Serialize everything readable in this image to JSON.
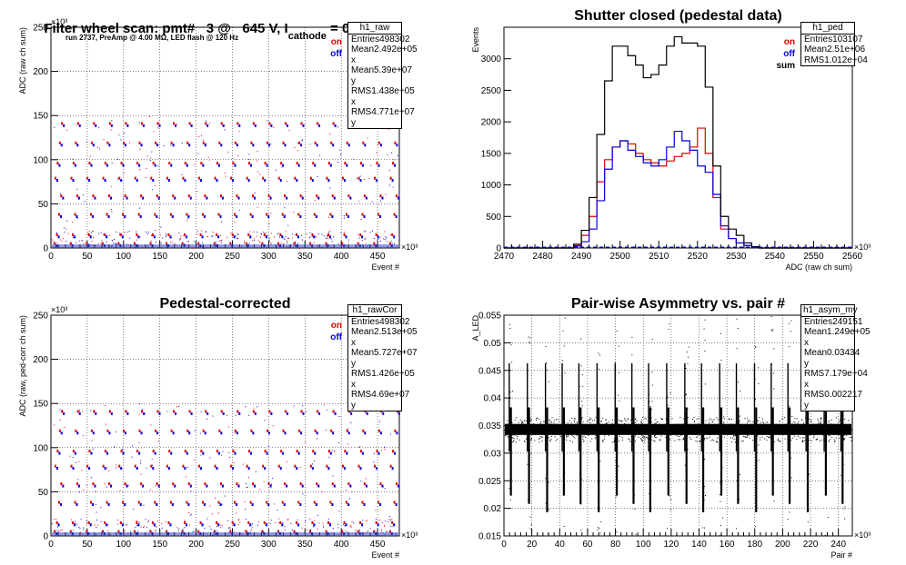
{
  "page": {
    "main_title": "Filter wheel scan: pmt#   3 @   645 V, I",
    "main_title_sub": "cathode",
    "main_title_tail": " = 0.30 nA"
  },
  "chart_data": [
    {
      "id": "raw",
      "type": "scatter",
      "title": "",
      "annotation": "run 2737, PreAmp @ 4.00 MΩ, LED flash @  120 Hz",
      "xlabel": "Event #",
      "ylabel": "ADC (raw ch sum)",
      "x_exponent": "×10³",
      "y_exponent": "×10³",
      "xlim": [
        0,
        480
      ],
      "ylim": [
        0,
        250
      ],
      "xticks": [
        0,
        50,
        100,
        150,
        200,
        250,
        300,
        350,
        400,
        450
      ],
      "yticks": [
        0,
        50,
        100,
        150,
        200,
        250
      ],
      "levels": [
        4,
        14,
        37,
        58,
        78,
        95,
        118,
        140
      ],
      "legend": [
        "on",
        "off"
      ],
      "legend_colors": [
        "#e00000",
        "#0000e0"
      ],
      "stats": {
        "name": "h1_raw",
        "rows": [
          [
            "Entries",
            "498302"
          ],
          [
            "Mean x",
            "2.492e+05"
          ],
          [
            "Mean y",
            "5.39e+07"
          ],
          [
            "RMS x",
            "1.438e+05"
          ],
          [
            "RMS y",
            "4.771e+07"
          ]
        ]
      }
    },
    {
      "id": "ped",
      "type": "line",
      "title": "Shutter closed (pedestal data)",
      "xlabel": "ADC (raw ch sum)",
      "ylabel": "Events",
      "x_exponent": "×10³",
      "xlim": [
        2470,
        2560
      ],
      "ylim": [
        0,
        3500
      ],
      "xticks": [
        2470,
        2480,
        2490,
        2500,
        2510,
        2520,
        2530,
        2540,
        2550,
        2560
      ],
      "yticks": [
        0,
        500,
        1000,
        1500,
        2000,
        2500,
        3000
      ],
      "x": [
        2486,
        2488,
        2490,
        2492,
        2494,
        2496,
        2498,
        2500,
        2502,
        2504,
        2506,
        2508,
        2510,
        2512,
        2514,
        2516,
        2518,
        2520,
        2522,
        2524,
        2526,
        2528,
        2530,
        2532,
        2534,
        2536
      ],
      "series": [
        {
          "name": "on",
          "color": "#e00000",
          "values": [
            0,
            40,
            200,
            500,
            1050,
            1400,
            1600,
            1700,
            1650,
            1500,
            1400,
            1350,
            1300,
            1380,
            1450,
            1500,
            1600,
            1900,
            1500,
            800,
            300,
            150,
            80,
            40,
            10,
            0
          ]
        },
        {
          "name": "off",
          "color": "#0000e0",
          "values": [
            0,
            30,
            100,
            300,
            750,
            1250,
            1600,
            1700,
            1550,
            1450,
            1350,
            1300,
            1400,
            1600,
            1850,
            1700,
            1550,
            1300,
            1200,
            850,
            350,
            150,
            80,
            40,
            10,
            0
          ]
        },
        {
          "name": "sum",
          "color": "#000000",
          "values": [
            0,
            60,
            280,
            800,
            1800,
            2650,
            3200,
            3200,
            3050,
            2900,
            2700,
            2750,
            2900,
            3200,
            3350,
            3250,
            3250,
            3200,
            2550,
            1300,
            500,
            300,
            200,
            80,
            20,
            0
          ]
        }
      ],
      "stats": {
        "name": "h1_ped",
        "rows": [
          [
            "Entries",
            "103107"
          ],
          [
            "Mean",
            "2.51e+06"
          ],
          [
            "RMS",
            "1.012e+04"
          ]
        ]
      }
    },
    {
      "id": "rawCor",
      "type": "scatter",
      "title": "Pedestal-corrected",
      "xlabel": "Event #",
      "ylabel": "ADC (raw, ped-corr ch sum)",
      "x_exponent": "×10³",
      "y_exponent": "×10³",
      "xlim": [
        0,
        480
      ],
      "ylim": [
        0,
        250
      ],
      "xticks": [
        0,
        50,
        100,
        150,
        200,
        250,
        300,
        350,
        400,
        450
      ],
      "yticks": [
        0,
        50,
        100,
        150,
        200,
        250
      ],
      "levels": [
        4,
        14,
        37,
        58,
        78,
        95,
        118,
        140
      ],
      "legend": [
        "on",
        "off"
      ],
      "legend_colors": [
        "#e00000",
        "#0000e0"
      ],
      "stats": {
        "name": "h1_rawCor",
        "rows": [
          [
            "Entries",
            "498302"
          ],
          [
            "Mean x",
            "2.513e+05"
          ],
          [
            "Mean y",
            "5.727e+07"
          ],
          [
            "RMS x",
            "1.426e+05"
          ],
          [
            "RMS y",
            "4.69e+07"
          ]
        ]
      }
    },
    {
      "id": "asym",
      "type": "scatter",
      "title": "Pair-wise Asymmetry vs. pair #",
      "xlabel": "Pair #",
      "ylabel": "A_LED",
      "x_exponent": "×10³",
      "xlim": [
        0,
        250
      ],
      "ylim": [
        0.015,
        0.055
      ],
      "xticks": [
        0,
        20,
        40,
        60,
        80,
        100,
        120,
        140,
        160,
        180,
        200,
        220,
        240
      ],
      "yticks": [
        0.015,
        0.02,
        0.025,
        0.03,
        0.035,
        0.04,
        0.045,
        0.05,
        0.055
      ],
      "band_center": 0.0343,
      "band_halfwidth": 0.001,
      "spike_positions": [
        5,
        18,
        31,
        43,
        55,
        68,
        81,
        93,
        105,
        118,
        131,
        143,
        156,
        168,
        181,
        193,
        205,
        218,
        231,
        243
      ],
      "stats": {
        "name": "h1_asym_my",
        "rows": [
          [
            "Entries",
            "249151"
          ],
          [
            "Mean x",
            "1.249e+05"
          ],
          [
            "Mean y",
            "0.03434"
          ],
          [
            "RMS x",
            "7.179e+04"
          ],
          [
            "RMS y",
            "0.002217"
          ]
        ]
      }
    }
  ]
}
